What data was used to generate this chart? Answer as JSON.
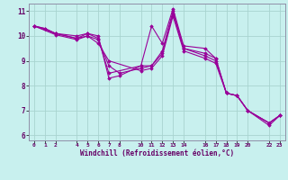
{
  "xlabel": "Windchill (Refroidissement éolien,°C)",
  "ylabel": "",
  "bg_color": "#c8f0ee",
  "line_color": "#990099",
  "marker_color": "#990099",
  "grid_color": "#a8d4d0",
  "xlim": [
    -0.5,
    23.5
  ],
  "ylim": [
    5.8,
    11.3
  ],
  "xticks": [
    0,
    1,
    2,
    4,
    5,
    6,
    7,
    8,
    10,
    11,
    12,
    13,
    14,
    16,
    17,
    18,
    19,
    20,
    22,
    23
  ],
  "yticks": [
    6,
    7,
    8,
    9,
    10,
    11
  ],
  "lines": [
    {
      "x": [
        0,
        1,
        2,
        4,
        5,
        6,
        7,
        8,
        10,
        11,
        12,
        13,
        14,
        16,
        17,
        18,
        19,
        20,
        22,
        23
      ],
      "y": [
        10.4,
        10.3,
        10.1,
        10.0,
        10.1,
        10.0,
        8.3,
        8.4,
        8.8,
        10.4,
        9.7,
        11.1,
        9.6,
        9.5,
        9.1,
        7.7,
        7.6,
        7.0,
        6.4,
        6.8
      ]
    },
    {
      "x": [
        0,
        1,
        2,
        4,
        5,
        6,
        7,
        10,
        11,
        12,
        13,
        14,
        16,
        17,
        18,
        19,
        20,
        22,
        23
      ],
      "y": [
        10.4,
        10.3,
        10.1,
        9.9,
        10.1,
        9.9,
        8.5,
        8.8,
        8.8,
        9.4,
        11.0,
        9.5,
        9.3,
        9.1,
        7.7,
        7.6,
        7.0,
        6.5,
        6.8
      ]
    },
    {
      "x": [
        0,
        2,
        4,
        5,
        6,
        7,
        8,
        10,
        11,
        12,
        13,
        14,
        16,
        17,
        18,
        19,
        20,
        22,
        23
      ],
      "y": [
        10.4,
        10.1,
        9.9,
        10.0,
        9.85,
        8.8,
        8.5,
        8.7,
        8.8,
        9.3,
        10.9,
        9.5,
        9.2,
        9.0,
        7.7,
        7.6,
        7.0,
        6.5,
        6.8
      ]
    },
    {
      "x": [
        0,
        2,
        4,
        5,
        6,
        7,
        10,
        11,
        12,
        13,
        14,
        16,
        17,
        18,
        19,
        20,
        22,
        23
      ],
      "y": [
        10.4,
        10.05,
        9.85,
        10.0,
        9.7,
        9.0,
        8.6,
        8.7,
        9.2,
        10.8,
        9.4,
        9.1,
        8.9,
        7.7,
        7.6,
        7.0,
        6.5,
        6.8
      ]
    }
  ]
}
